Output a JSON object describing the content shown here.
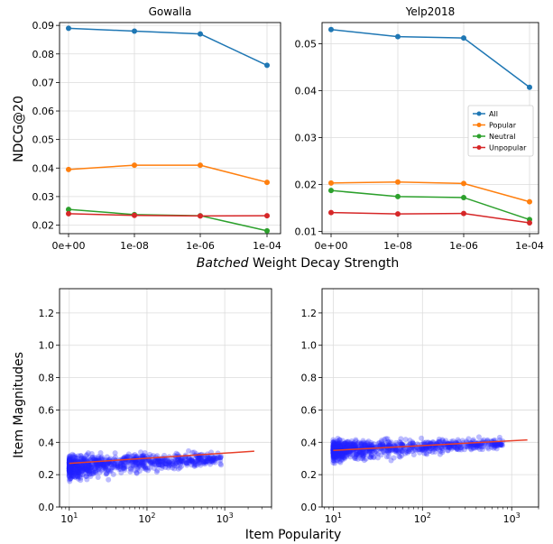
{
  "figure": {
    "top_xlabel_italic": "Batched",
    "top_xlabel_rest": " Weight Decay Strength",
    "top_ylabel": "NDCG@20",
    "bottom_xlabel": "Item Popularity",
    "bottom_ylabel": "Item Magnitudes"
  },
  "chart_data": [
    {
      "type": "line",
      "title": "Gowalla",
      "categories": [
        "0e+00",
        "1e-08",
        "1e-06",
        "1e-04"
      ],
      "ylim": [
        0.017,
        0.091
      ],
      "yticks": [
        0.02,
        0.03,
        0.04,
        0.05,
        0.06,
        0.07,
        0.08,
        0.09
      ],
      "ytick_labels": [
        "0.02",
        "0.03",
        "0.04",
        "0.05",
        "0.06",
        "0.07",
        "0.08",
        "0.09"
      ],
      "grid": true,
      "series": [
        {
          "name": "All",
          "color": "#1f77b4",
          "values": [
            0.089,
            0.088,
            0.087,
            0.076
          ]
        },
        {
          "name": "Popular",
          "color": "#ff7f0e",
          "values": [
            0.0395,
            0.041,
            0.041,
            0.035
          ]
        },
        {
          "name": "Neutral",
          "color": "#2ca02c",
          "values": [
            0.0255,
            0.0237,
            0.0233,
            0.018
          ]
        },
        {
          "name": "Unpopular",
          "color": "#d62728",
          "values": [
            0.024,
            0.0234,
            0.0232,
            0.0233
          ]
        }
      ]
    },
    {
      "type": "line",
      "title": "Yelp2018",
      "categories": [
        "0e+00",
        "1e-08",
        "1e-06",
        "1e-04"
      ],
      "ylim": [
        0.0095,
        0.0545
      ],
      "yticks": [
        0.01,
        0.02,
        0.03,
        0.04,
        0.05
      ],
      "ytick_labels": [
        "0.01",
        "0.02",
        "0.03",
        "0.04",
        "0.05"
      ],
      "grid": true,
      "legend": "center-right",
      "series": [
        {
          "name": "All",
          "color": "#1f77b4",
          "values": [
            0.053,
            0.0515,
            0.0512,
            0.0407
          ]
        },
        {
          "name": "Popular",
          "color": "#ff7f0e",
          "values": [
            0.0203,
            0.0205,
            0.0202,
            0.0163
          ]
        },
        {
          "name": "Neutral",
          "color": "#2ca02c",
          "values": [
            0.0187,
            0.0174,
            0.0172,
            0.0125
          ]
        },
        {
          "name": "Unpopular",
          "color": "#d62728",
          "values": [
            0.014,
            0.0137,
            0.0138,
            0.0118
          ]
        }
      ]
    },
    {
      "type": "scatter",
      "xscale": "log",
      "xlim": [
        7.5,
        4000
      ],
      "ylim": [
        0.0,
        1.35
      ],
      "xticks": [
        10,
        100,
        1000
      ],
      "ytick_labels": [
        "0.0",
        "0.2",
        "0.4",
        "0.6",
        "0.8",
        "1.0",
        "1.2"
      ],
      "yticks": [
        0.0,
        0.2,
        0.4,
        0.6,
        0.8,
        1.0,
        1.2
      ],
      "grid": true,
      "point_color": "#2020ff",
      "fit_color": "#e8402a",
      "points": {
        "x_min": 10,
        "x_max": 900,
        "y_center_start": 0.25,
        "y_center_end": 0.3,
        "spread": 0.06
      },
      "fit_line": {
        "x": [
          10,
          2400
        ],
        "y": [
          0.27,
          0.345
        ]
      }
    },
    {
      "type": "scatter",
      "xscale": "log",
      "xlim": [
        7.5,
        2000
      ],
      "ylim": [
        0.0,
        1.35
      ],
      "xticks": [
        10,
        100,
        1000
      ],
      "ytick_labels": [
        "0.0",
        "0.2",
        "0.4",
        "0.6",
        "0.8",
        "1.0",
        "1.2"
      ],
      "yticks": [
        0.0,
        0.2,
        0.4,
        0.6,
        0.8,
        1.0,
        1.2
      ],
      "grid": true,
      "point_color": "#2020ff",
      "fit_color": "#e8402a",
      "points": {
        "x_min": 10,
        "x_max": 800,
        "y_center_start": 0.35,
        "y_center_end": 0.395,
        "spread": 0.05
      },
      "fit_line": {
        "x": [
          10,
          1500
        ],
        "y": [
          0.35,
          0.415
        ]
      }
    }
  ]
}
